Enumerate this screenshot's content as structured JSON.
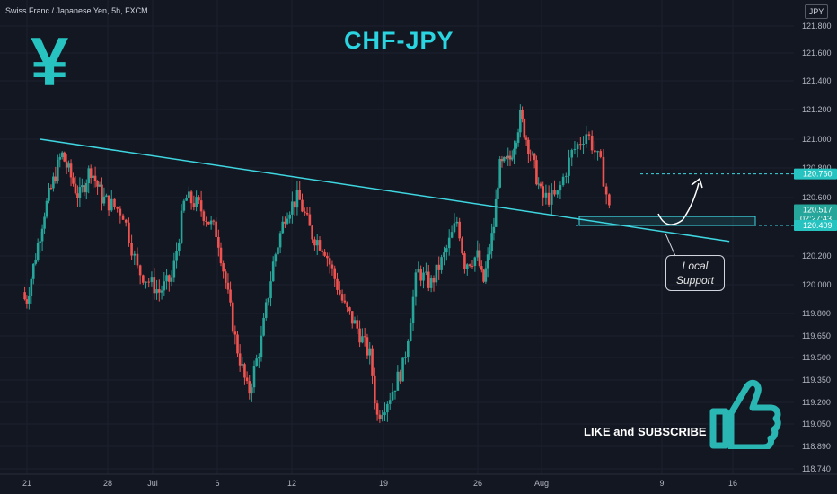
{
  "header": {
    "symbol": "Swiss Franc / Japanese Yen, 5h, FXCM",
    "currency_button": "JPY"
  },
  "overlay": {
    "title": "CHF-JPY",
    "yen_symbol": "¥",
    "local_support": [
      "Local",
      "Support"
    ],
    "like_text": "LIKE and SUBSCRIBE",
    "colors": {
      "title": "#2ad4e0",
      "trendline": "#3ed6e0",
      "up": "#26a69a",
      "down": "#ef5350",
      "yen": "#26c3c0"
    }
  },
  "chart_data": {
    "type": "candlestick",
    "title": "CHF-JPY",
    "x_ticks": [
      "21",
      "28",
      "Jul",
      "6",
      "12",
      "19",
      "26",
      "Aug",
      "9",
      "16"
    ],
    "y_ticks": [
      "121.800",
      "121.600",
      "121.400",
      "121.200",
      "121.000",
      "120.800",
      "120.600",
      "120.200",
      "120.000",
      "119.800",
      "119.650",
      "119.500",
      "119.350",
      "119.200",
      "119.050",
      "118.890",
      "118.740"
    ],
    "price_labels": [
      {
        "value": 120.76,
        "text": "120.760",
        "color": "#26c3c0"
      },
      {
        "value": 120.517,
        "text": "120.517",
        "sub": "02:27:43",
        "color": "#26a69a"
      },
      {
        "value": 120.409,
        "text": "120.409",
        "color": "#26c3c0"
      }
    ],
    "close_path": [
      [
        0,
        119.9
      ],
      [
        1.5,
        120.5
      ],
      [
        3,
        120.9
      ],
      [
        4.5,
        120.6
      ],
      [
        5.5,
        120.8
      ],
      [
        6.5,
        120.6
      ],
      [
        8,
        120.5
      ],
      [
        9,
        120.1
      ],
      [
        10.5,
        119.95
      ],
      [
        11.5,
        120.05
      ],
      [
        12.5,
        120.6
      ],
      [
        13.5,
        120.55
      ],
      [
        15,
        120.35
      ],
      [
        16.5,
        119.6
      ],
      [
        17.5,
        119.25
      ],
      [
        18.5,
        119.6
      ],
      [
        19.5,
        120.15
      ],
      [
        20.5,
        120.5
      ],
      [
        21.5,
        120.6
      ],
      [
        22.5,
        120.35
      ],
      [
        23.5,
        120.25
      ],
      [
        25,
        119.85
      ],
      [
        26,
        119.7
      ],
      [
        27,
        119.5
      ],
      [
        27.5,
        119.1
      ],
      [
        28.5,
        119.25
      ],
      [
        29.5,
        119.45
      ],
      [
        30.5,
        120.1
      ],
      [
        31.5,
        120.0
      ],
      [
        32.5,
        120.2
      ],
      [
        33.5,
        120.45
      ],
      [
        34,
        120.15
      ],
      [
        35,
        120.2
      ],
      [
        35.5,
        120.0
      ],
      [
        36.5,
        120.4
      ],
      [
        37,
        120.8
      ],
      [
        38,
        120.85
      ],
      [
        39,
        121.15
      ],
      [
        40,
        120.9
      ],
      [
        41,
        120.6
      ],
      [
        42,
        120.6
      ],
      [
        43,
        120.9
      ],
      [
        44,
        121.05
      ],
      [
        45,
        120.8
      ],
      [
        45.5,
        120.517
      ]
    ],
    "trendline": {
      "from": {
        "x": "2021-06-21",
        "y": 121.0
      },
      "to": {
        "x": "2021-08-13",
        "y": 120.3
      }
    },
    "support_zone": [
      120.409,
      120.47
    ],
    "target_level": 120.76
  }
}
